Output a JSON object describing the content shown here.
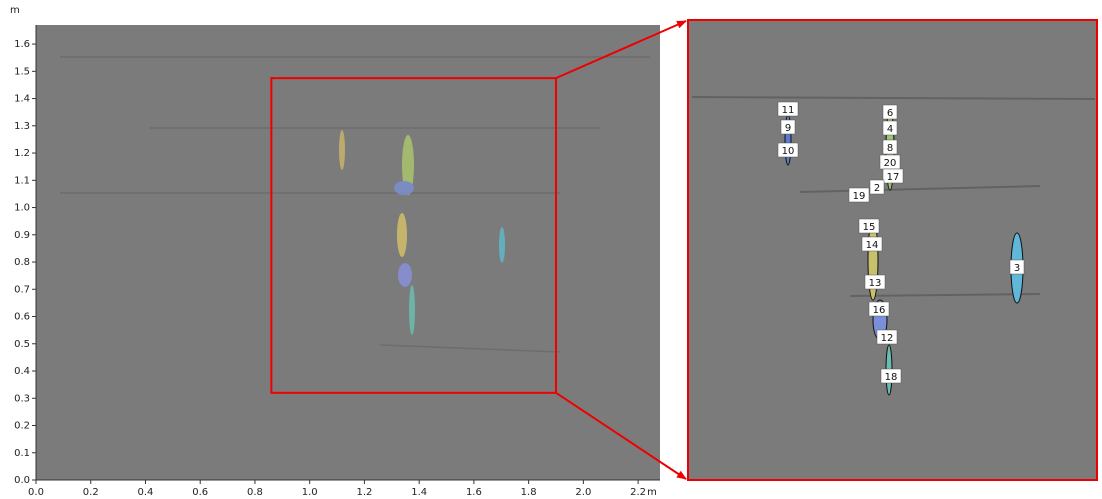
{
  "axes": {
    "x_unit": "m",
    "y_unit": "m",
    "xlim": [
      0,
      2.28
    ],
    "ylim": [
      0,
      1.67
    ],
    "xticks": [
      {
        "value": 0,
        "label": "0.0"
      },
      0.2,
      0.4,
      0.6,
      0.8,
      {
        "value": 1,
        "label": "1.0"
      },
      1.2,
      1.4,
      1.6,
      1.8,
      {
        "value": 2,
        "label": "2.0"
      },
      2.2
    ],
    "yticks": [
      {
        "value": 0,
        "label": "0.0"
      },
      0.1,
      0.2,
      0.3,
      0.4,
      0.5,
      0.6,
      0.7,
      0.8,
      0.9,
      {
        "value": 1,
        "label": "1.0"
      },
      1.1,
      1.2,
      1.3,
      1.4,
      1.5,
      1.6
    ]
  },
  "zoom_region": {
    "x": [
      0.86,
      1.9
    ],
    "y": [
      0.32,
      1.475
    ]
  },
  "labels": [
    "11",
    "9",
    "10",
    "6",
    "4",
    "8",
    "20",
    "17",
    "2",
    "19",
    "15",
    "14",
    "13",
    "16",
    "12",
    "18",
    "3"
  ]
}
